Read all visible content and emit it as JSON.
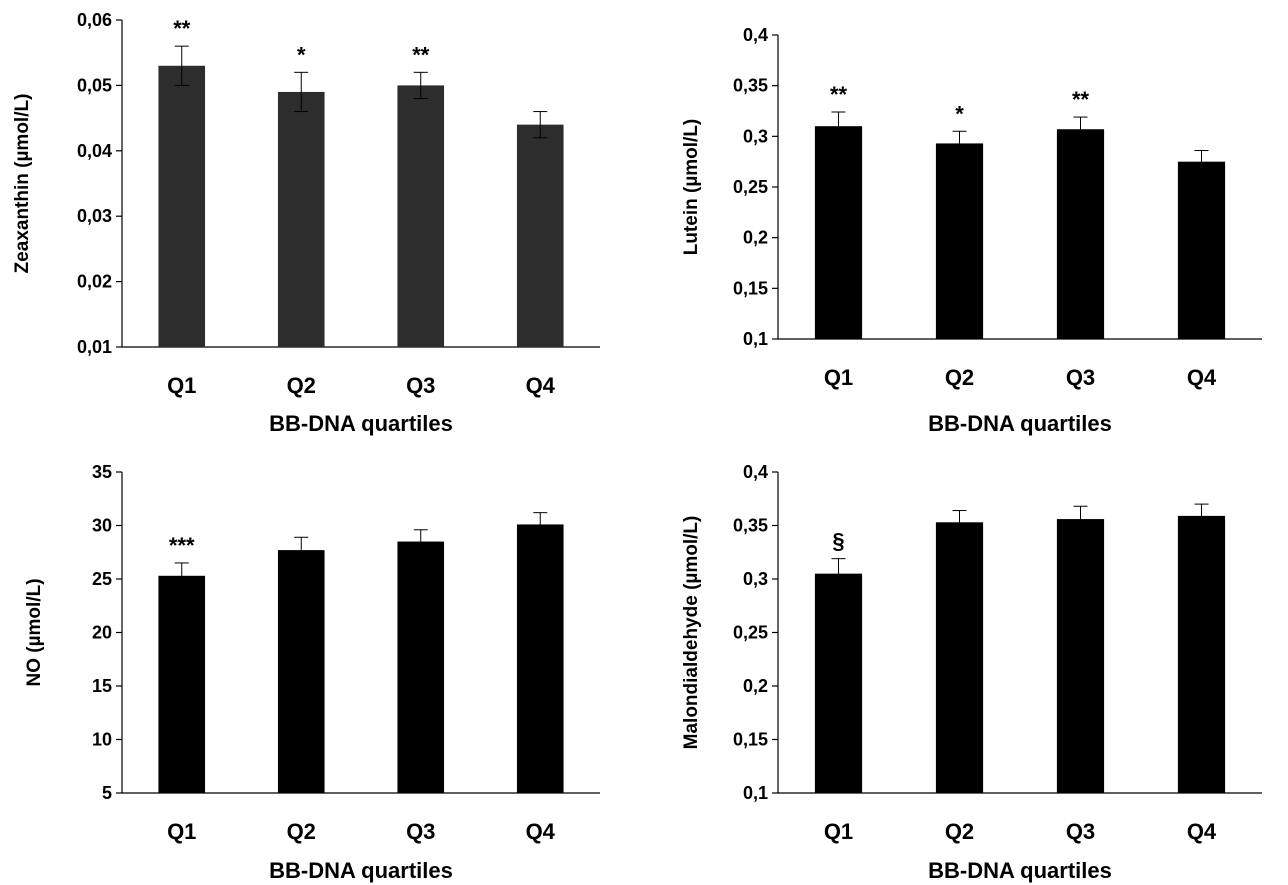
{
  "chart_data": [
    {
      "type": "bar",
      "panel": "top-left",
      "xlabel": "BB-DNA quartiles",
      "ylabel": "Zeaxanthin (µmol/L)",
      "categories": [
        "Q1",
        "Q2",
        "Q3",
        "Q4"
      ],
      "values": [
        0.053,
        0.049,
        0.05,
        0.044
      ],
      "errors": [
        0.003,
        0.003,
        0.002,
        0.002
      ],
      "annotations": [
        "**",
        "*",
        "**",
        ""
      ],
      "ylim": [
        0.01,
        0.06
      ],
      "yticks": [
        0.01,
        0.02,
        0.03,
        0.04,
        0.05,
        0.06
      ],
      "ytick_labels": [
        "0,01",
        "0,02",
        "0,03",
        "0,04",
        "0,05",
        "0,06"
      ],
      "bar_color": "#2d2d2d"
    },
    {
      "type": "bar",
      "panel": "top-right",
      "xlabel": "BB-DNA quartiles",
      "ylabel": "Lutein  (µmol/L)",
      "categories": [
        "Q1",
        "Q2",
        "Q3",
        "Q4"
      ],
      "values": [
        0.31,
        0.293,
        0.307,
        0.275
      ],
      "errors": [
        0.014,
        0.012,
        0.012,
        0.011
      ],
      "annotations": [
        "**",
        "*",
        "**",
        ""
      ],
      "ylim": [
        0.1,
        0.4
      ],
      "yticks": [
        0.1,
        0.15,
        0.2,
        0.25,
        0.3,
        0.35,
        0.4
      ],
      "ytick_labels": [
        "0,1",
        "0,15",
        "0,2",
        "0,25",
        "0,3",
        "0,35",
        "0,4"
      ],
      "bar_color": "#000000"
    },
    {
      "type": "bar",
      "panel": "bottom-left",
      "xlabel": "BB-DNA quartiles",
      "ylabel": "NO (µmol/L)",
      "categories": [
        "Q1",
        "Q2",
        "Q3",
        "Q4"
      ],
      "values": [
        25.3,
        27.7,
        28.5,
        30.1
      ],
      "errors": [
        1.2,
        1.2,
        1.1,
        1.1
      ],
      "annotations": [
        "***",
        "",
        "",
        ""
      ],
      "ylim": [
        5,
        35
      ],
      "yticks": [
        5,
        10,
        15,
        20,
        25,
        30,
        35
      ],
      "ytick_labels": [
        "5",
        "10",
        "15",
        "20",
        "25",
        "30",
        "35"
      ],
      "bar_color": "#000000"
    },
    {
      "type": "bar",
      "panel": "bottom-right",
      "xlabel": "BB-DNA quartiles",
      "ylabel": "Malondialdehyde  (µmol/L)",
      "categories": [
        "Q1",
        "Q2",
        "Q3",
        "Q4"
      ],
      "values": [
        0.305,
        0.353,
        0.356,
        0.359
      ],
      "errors": [
        0.014,
        0.011,
        0.012,
        0.011
      ],
      "annotations": [
        "§",
        "",
        "",
        ""
      ],
      "ylim": [
        0.1,
        0.4
      ],
      "yticks": [
        0.1,
        0.15,
        0.2,
        0.25,
        0.3,
        0.35,
        0.4
      ],
      "ytick_labels": [
        "0,1",
        "0,15",
        "0,2",
        "0,25",
        "0,3",
        "0,35",
        "0,4"
      ],
      "bar_color": "#000000"
    }
  ]
}
